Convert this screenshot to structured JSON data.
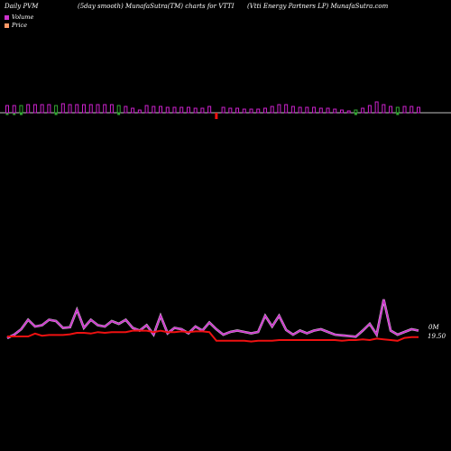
{
  "header": {
    "left": "Daily PVM",
    "center": "(5day smooth) MunafaSutra(TM) charts for VTTI",
    "right": "(Vtti  Energy Partners LP) MunafaSutra.com"
  },
  "legend": {
    "volume_label": "Volume",
    "price_label": "Price",
    "volume_color": "#cc33cc",
    "price_color": "#ff9966"
  },
  "labels": {
    "volume_axis": "0M",
    "price_axis": "19.50"
  },
  "colors": {
    "volume_up": "#cc22cc",
    "volume_down_red": "#ee1111",
    "volume_down_green": "#33aa33",
    "baseline": "#ffffff",
    "volume_line": "#cc33cc",
    "price_line": "#ee1111"
  },
  "chart_data": [
    {
      "type": "bar",
      "title": "",
      "series": [
        {
          "values": [
            8,
            8,
            8,
            9,
            9,
            9,
            9,
            8,
            10,
            9,
            9,
            9,
            9,
            9,
            9,
            9,
            8,
            7,
            5,
            3,
            8,
            7,
            7,
            6,
            6,
            6,
            6,
            5,
            5,
            7,
            -7,
            6,
            5,
            5,
            4,
            4,
            4,
            5,
            7,
            9,
            9,
            7,
            6,
            6,
            6,
            5,
            5,
            4,
            3,
            2,
            3,
            5,
            8,
            12,
            9,
            7,
            6,
            7,
            7,
            6
          ],
          "direction": [
            "d",
            "d",
            "g",
            "u",
            "u",
            "u",
            "u",
            "g",
            "u",
            "u",
            "u",
            "u",
            "u",
            "u",
            "u",
            "u",
            "g",
            "u",
            "u",
            "u",
            "u",
            "u",
            "u",
            "u",
            "u",
            "u",
            "u",
            "u",
            "u",
            "u",
            "r",
            "u",
            "u",
            "u",
            "u",
            "u",
            "u",
            "u",
            "u",
            "u",
            "u",
            "u",
            "u",
            "u",
            "u",
            "u",
            "u",
            "u",
            "u",
            "u",
            "g",
            "u",
            "u",
            "u",
            "u",
            "u",
            "g",
            "u",
            "u",
            "u"
          ]
        }
      ]
    },
    {
      "type": "line",
      "title": "",
      "series": [
        {
          "values": [
            3,
            8,
            16,
            30,
            20,
            22,
            30,
            28,
            18,
            19,
            45,
            18,
            30,
            22,
            20,
            28,
            24,
            30,
            18,
            14,
            22,
            8,
            36,
            10,
            18,
            16,
            10,
            20,
            14,
            26,
            16,
            8,
            12,
            14,
            12,
            10,
            12,
            36,
            20,
            36,
            15,
            8,
            14,
            10,
            14,
            16,
            12,
            8,
            7,
            6,
            5,
            14,
            24,
            8,
            60,
            14,
            8,
            12,
            16,
            14
          ]
        },
        {
          "values": [
            20.0,
            20.0,
            20.0,
            20.0,
            20.4,
            20.1,
            20.2,
            20.2,
            20.2,
            20.3,
            20.5,
            20.5,
            20.4,
            20.6,
            20.5,
            20.6,
            20.6,
            20.6,
            20.8,
            20.8,
            20.8,
            20.6,
            20.8,
            20.6,
            20.6,
            20.7,
            20.6,
            20.7,
            20.7,
            20.6,
            19.4,
            19.4,
            19.4,
            19.4,
            19.4,
            19.3,
            19.4,
            19.4,
            19.4,
            19.5,
            19.5,
            19.5,
            19.5,
            19.5,
            19.5,
            19.5,
            19.5,
            19.5,
            19.4,
            19.5,
            19.5,
            19.6,
            19.5,
            19.7,
            19.6,
            19.5,
            19.4,
            19.8,
            19.9,
            19.9
          ]
        }
      ]
    }
  ]
}
